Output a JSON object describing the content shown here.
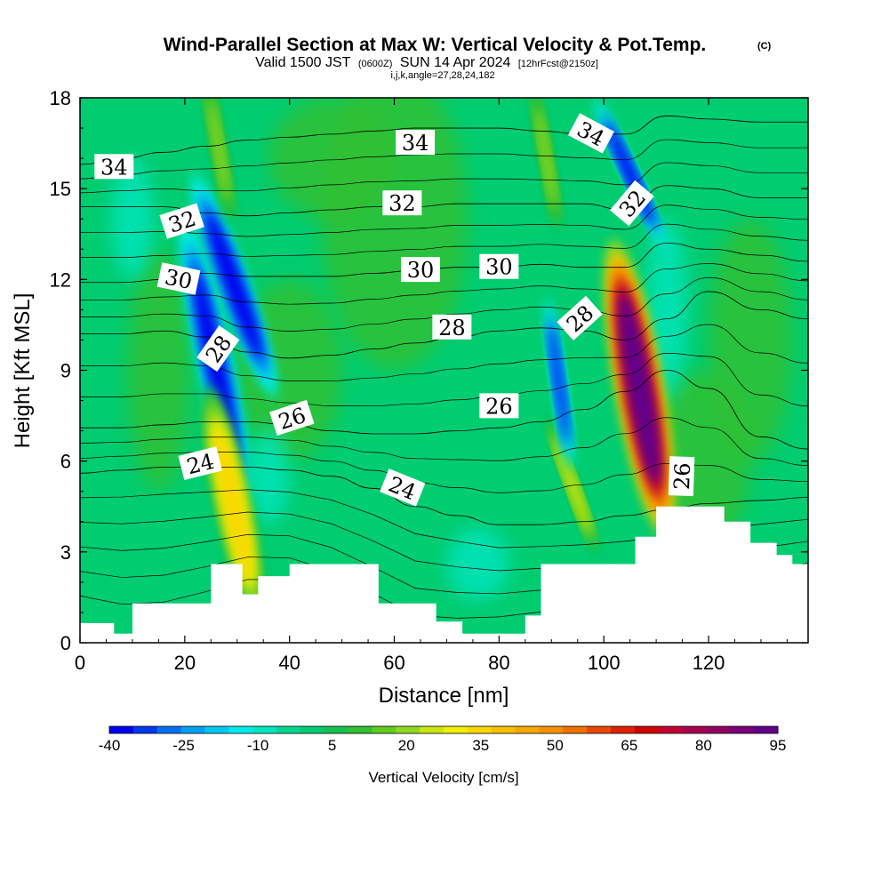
{
  "header": {
    "title": "Wind-Parallel Section at Max W: Vertical Velocity & Pot.Temp.",
    "copyright": "(C)",
    "valid_prefix": "Valid 1500 JST",
    "valid_utc": "(0600Z)",
    "valid_date": "SUN 14 Apr 2024",
    "forecast": "[12hrFcst@2150z]",
    "indices": "i,j,k,angle=27,28,24,182"
  },
  "chart_data": {
    "type": "heatmap",
    "xlabel": "Distance [nm]",
    "ylabel": "Height [Kft MSL]",
    "xlim": [
      0,
      139
    ],
    "ylim": [
      0,
      18
    ],
    "x_ticks": [
      "0",
      "20",
      "40",
      "60",
      "80",
      "100",
      "120"
    ],
    "y_ticks": [
      "0",
      "3",
      "6",
      "9",
      "12",
      "15",
      "18"
    ],
    "colorbar": {
      "label": "Vertical Velocity [cm/s]",
      "tick_labels": [
        "-40",
        "-25",
        "-10",
        "5",
        "20",
        "35",
        "50",
        "65",
        "80",
        "95"
      ],
      "levels": [
        -40,
        -35,
        -30,
        -25,
        -20,
        -15,
        -10,
        -5,
        0,
        5,
        10,
        15,
        20,
        25,
        30,
        35,
        40,
        45,
        50,
        55,
        60,
        65,
        70,
        75,
        80,
        85,
        90,
        95
      ],
      "colors": [
        "#0000f0",
        "#0038f0",
        "#0070f0",
        "#00a0f0",
        "#00c8f0",
        "#00ecec",
        "#00e6c0",
        "#00d890",
        "#00cc70",
        "#14c050",
        "#30c030",
        "#60cc20",
        "#90d820",
        "#c8e810",
        "#f0f000",
        "#f8d800",
        "#f8c000",
        "#f8a800",
        "#f89000",
        "#f07000",
        "#e84800",
        "#e02000",
        "#d00000",
        "#c00030",
        "#a80050",
        "#900060",
        "#78007a",
        "#60008a"
      ]
    },
    "terrain_kft": [
      [
        0,
        0.65
      ],
      [
        6.5,
        0.3
      ],
      [
        10,
        1.3
      ],
      [
        25,
        2.6
      ],
      [
        31,
        1.6
      ],
      [
        34,
        2.2
      ],
      [
        40,
        2.6
      ],
      [
        51,
        2.6
      ],
      [
        57,
        1.3
      ],
      [
        68,
        0.7
      ],
      [
        73,
        0.3
      ],
      [
        77,
        0.3
      ],
      [
        80,
        0.3
      ],
      [
        85,
        0.9
      ],
      [
        88,
        2.6
      ],
      [
        95,
        2.6
      ],
      [
        100,
        2.6
      ],
      [
        106,
        3.5
      ],
      [
        110,
        4.5
      ],
      [
        118,
        4.5
      ],
      [
        123,
        4.0
      ],
      [
        128,
        3.3
      ],
      [
        133,
        2.9
      ],
      [
        136,
        2.6
      ],
      [
        139,
        2.2
      ]
    ],
    "vertical_velocity_features": [
      {
        "x_nm": 25.8,
        "height_kft": 9.2,
        "peak_cms": -40
      },
      {
        "x_nm": 29.4,
        "height_kft": 11.8,
        "peak_cms": -40
      },
      {
        "x_nm": 29.2,
        "height_kft": 4.6,
        "peak_cms": 35
      },
      {
        "x_nm": 105.0,
        "height_kft": 15.5,
        "peak_cms": -40
      },
      {
        "x_nm": 106.8,
        "height_kft": 8.4,
        "peak_cms": 95
      },
      {
        "x_nm": 94.0,
        "height_kft": 5.2,
        "peak_cms": 25
      },
      {
        "x_nm": 91.4,
        "height_kft": 8.6,
        "peak_cms": -35
      },
      {
        "x_nm": 89.0,
        "height_kft": 16.0,
        "peak_cms": 20
      },
      {
        "x_nm": 26.5,
        "height_kft": 16.3,
        "peak_cms": 20
      }
    ],
    "theta_contours": [
      {
        "level": 24,
        "heights_kft": [
          5.6,
          5.7,
          5.8,
          5.8,
          5.8,
          5.7,
          5.5,
          5.1,
          4.5,
          4.2,
          3.9,
          3.9,
          4.0,
          4.2,
          4.4,
          4.6,
          4.7,
          4.8
        ]
      },
      {
        "level": 26,
        "heights_kft": [
          7.1,
          7.1,
          7.2,
          7.3,
          7.3,
          7.2,
          7.0,
          6.9,
          6.9,
          7.0,
          7.1,
          7.3,
          7.7,
          8.3,
          9.0,
          8.4,
          6.8,
          6.4
        ]
      },
      {
        "level": 28,
        "heights_kft": [
          10.2,
          10.2,
          10.3,
          10.1,
          9.6,
          9.4,
          9.5,
          9.7,
          9.9,
          10.1,
          10.3,
          10.4,
          10.3,
          10.0,
          10.7,
          11.6,
          11.0,
          10.7
        ]
      },
      {
        "level": 30,
        "heights_kft": [
          11.9,
          11.9,
          12.0,
          12.2,
          12.1,
          12.1,
          12.1,
          12.2,
          12.3,
          12.4,
          12.4,
          12.5,
          12.4,
          12.4,
          13.2,
          13.0,
          12.8,
          12.6
        ]
      },
      {
        "level": 32,
        "heights_kft": [
          14.4,
          14.4,
          14.4,
          14.2,
          14.1,
          14.2,
          14.3,
          14.4,
          14.4,
          14.5,
          14.5,
          14.5,
          14.5,
          14.3,
          15.1,
          15.0,
          14.7,
          14.7
        ]
      },
      {
        "level": 34,
        "heights_kft": [
          15.8,
          16.0,
          16.2,
          16.4,
          16.6,
          16.7,
          16.8,
          16.9,
          17.0,
          17.0,
          17.0,
          16.9,
          16.8,
          16.8,
          17.4,
          17.3,
          17.2,
          17.2
        ]
      }
    ],
    "contour_x_nm": [
      0,
      8,
      16,
      24,
      32,
      40,
      48,
      56,
      64,
      72,
      80,
      88,
      96,
      104,
      112,
      120,
      130,
      139
    ],
    "contour_labels": [
      {
        "text": "34",
        "x_nm": 6.5,
        "height_kft": 15.7,
        "angle": 0
      },
      {
        "text": "34",
        "x_nm": 64,
        "height_kft": 16.5,
        "angle": 0
      },
      {
        "text": "34",
        "x_nm": 97.5,
        "height_kft": 16.8,
        "angle": 28
      },
      {
        "text": "32",
        "x_nm": 19.5,
        "height_kft": 13.9,
        "angle": -18
      },
      {
        "text": "32",
        "x_nm": 61.5,
        "height_kft": 14.5,
        "angle": 0
      },
      {
        "text": "32",
        "x_nm": 105.5,
        "height_kft": 14.5,
        "angle": -50
      },
      {
        "text": "30",
        "x_nm": 18.8,
        "height_kft": 12.0,
        "angle": 12
      },
      {
        "text": "30",
        "x_nm": 65,
        "height_kft": 12.3,
        "angle": 0
      },
      {
        "text": "30",
        "x_nm": 80,
        "height_kft": 12.4,
        "angle": 0
      },
      {
        "text": "28",
        "x_nm": 26.5,
        "height_kft": 9.7,
        "angle": -55
      },
      {
        "text": "28",
        "x_nm": 71,
        "height_kft": 10.4,
        "angle": 0
      },
      {
        "text": "28",
        "x_nm": 95.5,
        "height_kft": 10.7,
        "angle": -42
      },
      {
        "text": "26",
        "x_nm": 40.5,
        "height_kft": 7.4,
        "angle": -18
      },
      {
        "text": "26",
        "x_nm": 80,
        "height_kft": 7.8,
        "angle": 0
      },
      {
        "text": "26",
        "x_nm": 115,
        "height_kft": 5.5,
        "angle": -88
      },
      {
        "text": "24",
        "x_nm": 23,
        "height_kft": 5.9,
        "angle": -14
      },
      {
        "text": "24",
        "x_nm": 61.5,
        "height_kft": 5.1,
        "angle": 22
      }
    ]
  }
}
